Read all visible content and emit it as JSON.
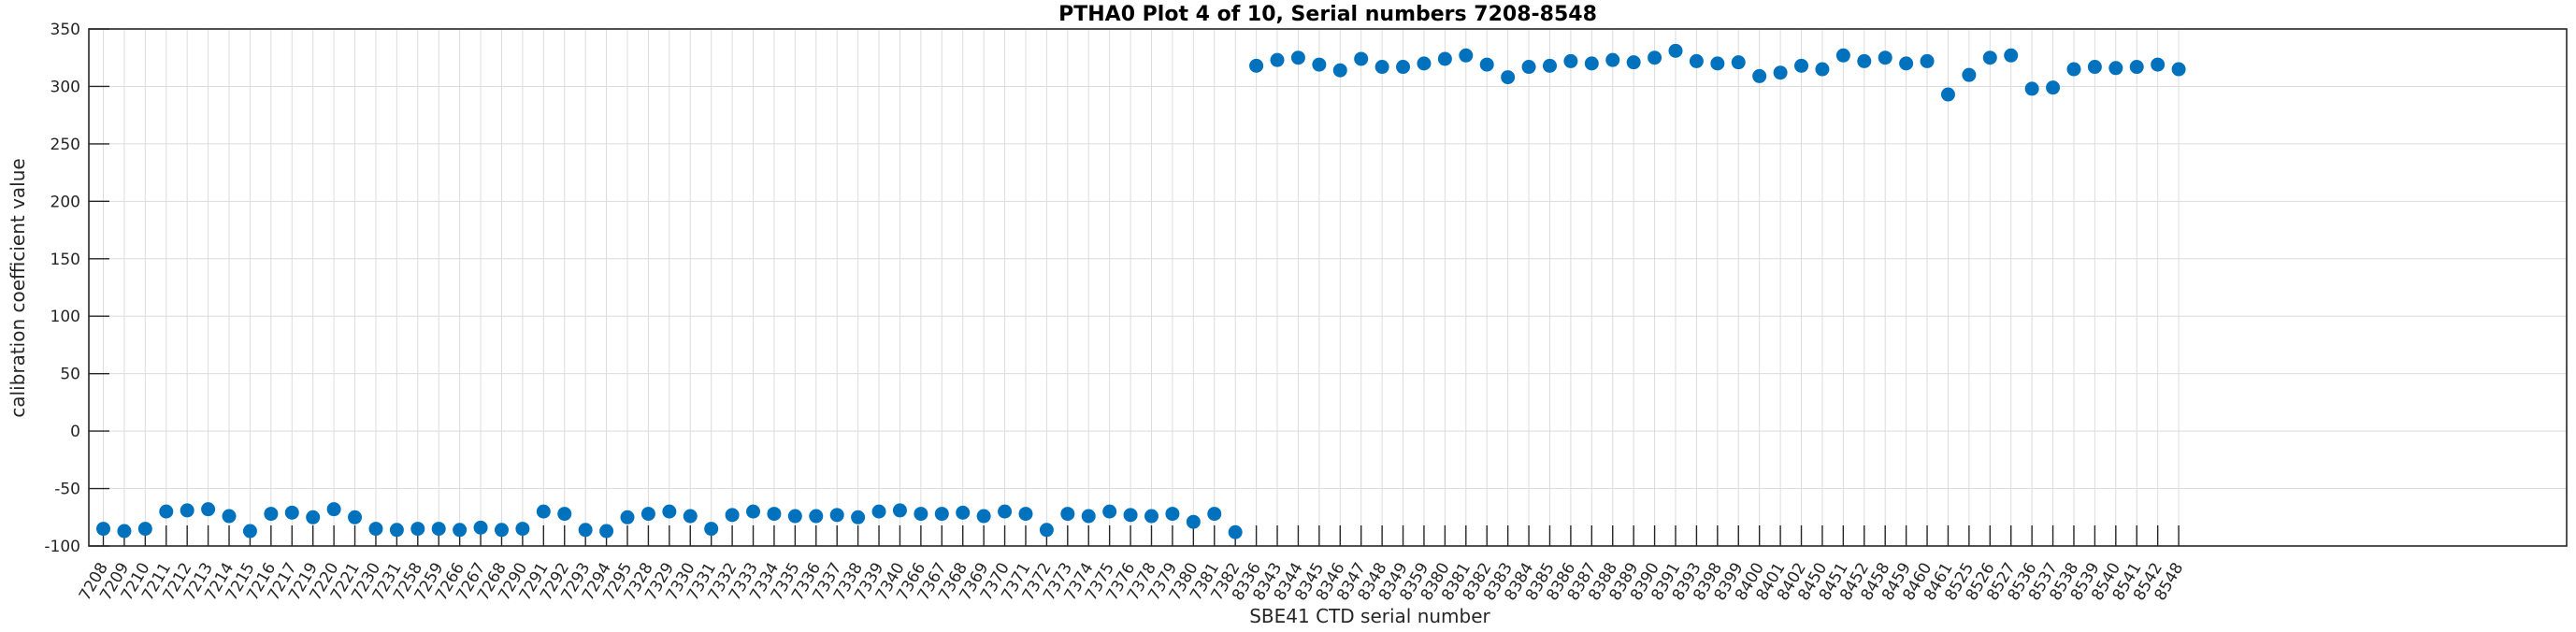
{
  "chart_data": {
    "type": "scatter",
    "title": "PTHA0 Plot 4 of 10, Serial numbers 7208-8548",
    "xlabel": "SBE41 CTD serial number",
    "ylabel": "calibration coefficient value",
    "ylim": [
      -100,
      350
    ],
    "yticks": [
      -100,
      -50,
      0,
      50,
      100,
      150,
      200,
      250,
      300,
      350
    ],
    "grid": "on",
    "legend": "none",
    "marker_color": "#0072BD",
    "grid_color": "#dcdcdc",
    "axis_color": "#262626",
    "x_tick_rotation_deg": 60,
    "categories": [
      "7208",
      "7209",
      "7210",
      "7211",
      "7212",
      "7213",
      "7214",
      "7215",
      "7216",
      "7217",
      "7219",
      "7220",
      "7221",
      "7230",
      "7231",
      "7258",
      "7259",
      "7266",
      "7267",
      "7268",
      "7290",
      "7291",
      "7292",
      "7293",
      "7294",
      "7295",
      "7328",
      "7329",
      "7330",
      "7331",
      "7332",
      "7333",
      "7334",
      "7335",
      "7336",
      "7337",
      "7338",
      "7339",
      "7340",
      "7366",
      "7367",
      "7368",
      "7369",
      "7370",
      "7371",
      "7372",
      "7373",
      "7374",
      "7375",
      "7376",
      "7378",
      "7379",
      "7380",
      "7381",
      "7382",
      "8336",
      "8343",
      "8344",
      "8345",
      "8346",
      "8347",
      "8348",
      "8349",
      "8359",
      "8380",
      "8381",
      "8382",
      "8383",
      "8384",
      "8385",
      "8386",
      "8387",
      "8388",
      "8389",
      "8390",
      "8391",
      "8393",
      "8398",
      "8399",
      "8400",
      "8401",
      "8402",
      "8450",
      "8451",
      "8452",
      "8458",
      "8459",
      "8460",
      "8461",
      "8525",
      "8526",
      "8527",
      "8536",
      "8537",
      "8538",
      "8539",
      "8540",
      "8541",
      "8542",
      "8548"
    ],
    "values": [
      -85,
      -87,
      -85,
      -70,
      -69,
      -68,
      -74,
      -87,
      -72,
      -71,
      -75,
      -68,
      -75,
      -85,
      -86,
      -85,
      -85,
      -86,
      -84,
      -86,
      -85,
      -70,
      -72,
      -86,
      -87,
      -75,
      -72,
      -70,
      -74,
      -85,
      -73,
      -70,
      -72,
      -74,
      -74,
      -73,
      -75,
      -70,
      -69,
      -72,
      -72,
      -71,
      -74,
      -70,
      -72,
      -86,
      -72,
      -74,
      -70,
      -73,
      -74,
      -72,
      -79,
      -72,
      -88,
      318,
      323,
      325,
      319,
      314,
      324,
      317,
      317,
      320,
      324,
      327,
      319,
      308,
      317,
      318,
      322,
      320,
      323,
      321,
      325,
      331,
      322,
      320,
      321,
      309,
      312,
      318,
      315,
      327,
      322,
      325,
      320,
      322,
      293,
      310,
      325,
      327,
      298,
      299,
      315,
      317,
      316,
      317,
      319,
      315
    ]
  }
}
